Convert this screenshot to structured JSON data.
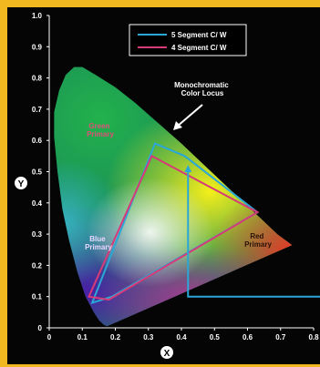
{
  "chart_data": {
    "type": "chromaticity-diagram",
    "axes": {
      "x": {
        "label": "X",
        "range": [
          0,
          0.8
        ],
        "ticks": [
          "0",
          "0.1",
          "0.2",
          "0.3",
          "0.4",
          "0.5",
          "0.6",
          "0.7",
          "0.8"
        ]
      },
      "y": {
        "label": "Y",
        "range": [
          0,
          1.0
        ],
        "ticks": [
          "0",
          "0.1",
          "0.2",
          "0.3",
          "0.4",
          "0.5",
          "0.6",
          "0.7",
          "0.8",
          "0.9",
          "1.0"
        ]
      }
    },
    "legend": {
      "placement": "top-right",
      "entries": [
        {
          "label": "5 Segment C/ W",
          "color": "#2aa7d6"
        },
        {
          "label": "4 Segment C/ W",
          "color": "#d63a78"
        }
      ]
    },
    "annotations": {
      "locus": [
        "Monochromatic",
        "Color Locus"
      ],
      "green": [
        "Green",
        "Primary"
      ],
      "blue": [
        "Blue",
        "Primary"
      ],
      "red": [
        "Red",
        "Primary"
      ]
    },
    "locus_points": [
      [
        0.175,
        0.005
      ],
      [
        0.165,
        0.01
      ],
      [
        0.15,
        0.025
      ],
      [
        0.135,
        0.05
      ],
      [
        0.11,
        0.1
      ],
      [
        0.085,
        0.18
      ],
      [
        0.06,
        0.28
      ],
      [
        0.04,
        0.38
      ],
      [
        0.025,
        0.5
      ],
      [
        0.015,
        0.61
      ],
      [
        0.015,
        0.69
      ],
      [
        0.03,
        0.76
      ],
      [
        0.05,
        0.81
      ],
      [
        0.075,
        0.835
      ],
      [
        0.1,
        0.835
      ],
      [
        0.14,
        0.81
      ],
      [
        0.2,
        0.77
      ],
      [
        0.26,
        0.72
      ],
      [
        0.33,
        0.655
      ],
      [
        0.4,
        0.59
      ],
      [
        0.48,
        0.51
      ],
      [
        0.56,
        0.43
      ],
      [
        0.64,
        0.35
      ],
      [
        0.69,
        0.3
      ],
      [
        0.735,
        0.265
      ]
    ],
    "series": [
      {
        "name": "5 Segment C/ W",
        "color": "#2aa7d6",
        "points": [
          [
            0.32,
            0.59
          ],
          [
            0.41,
            0.55
          ],
          [
            0.63,
            0.37
          ],
          [
            0.19,
            0.1
          ],
          [
            0.13,
            0.08
          ]
        ]
      },
      {
        "name": "4 Segment C/ W",
        "color": "#d63a78",
        "points": [
          [
            0.31,
            0.55
          ],
          [
            0.63,
            0.37
          ],
          [
            0.18,
            0.09
          ],
          [
            0.12,
            0.1
          ]
        ]
      }
    ],
    "callout": {
      "color": "#2aa7d6",
      "from": [
        0.85,
        0.1
      ],
      "corner": [
        0.42,
        0.1
      ],
      "to": [
        0.42,
        0.51
      ]
    }
  }
}
